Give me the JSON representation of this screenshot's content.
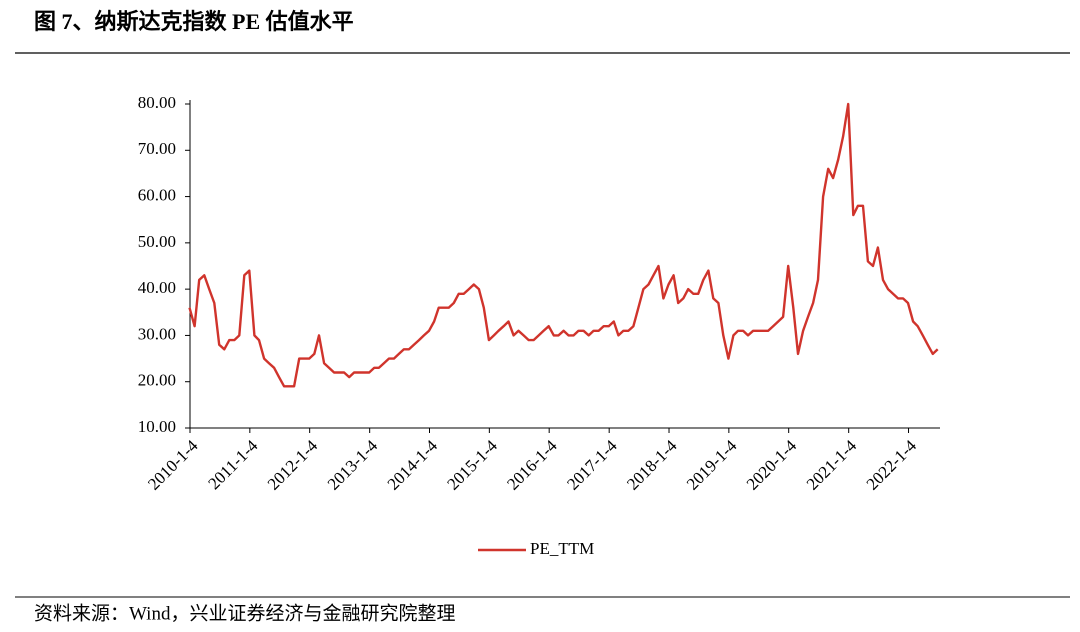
{
  "chart_data": {
    "type": "line",
    "title": "图 7、纳斯达克指数 PE 估值水平",
    "source": "资料来源：Wind，兴业证券经济与金融研究院整理",
    "x": [
      "2010-01",
      "2010-02",
      "2010-03",
      "2010-04",
      "2010-05",
      "2010-06",
      "2010-07",
      "2010-08",
      "2010-09",
      "2010-10",
      "2010-11",
      "2010-12",
      "2011-01",
      "2011-02",
      "2011-03",
      "2011-04",
      "2011-05",
      "2011-06",
      "2011-07",
      "2011-08",
      "2011-09",
      "2011-10",
      "2011-11",
      "2011-12",
      "2012-01",
      "2012-02",
      "2012-03",
      "2012-04",
      "2012-05",
      "2012-06",
      "2012-07",
      "2012-08",
      "2012-09",
      "2012-10",
      "2012-11",
      "2012-12",
      "2013-01",
      "2013-02",
      "2013-03",
      "2013-04",
      "2013-05",
      "2013-06",
      "2013-07",
      "2013-08",
      "2013-09",
      "2013-10",
      "2013-11",
      "2013-12",
      "2014-01",
      "2014-02",
      "2014-03",
      "2014-04",
      "2014-05",
      "2014-06",
      "2014-07",
      "2014-08",
      "2014-09",
      "2014-10",
      "2014-11",
      "2014-12",
      "2015-01",
      "2015-02",
      "2015-03",
      "2015-04",
      "2015-05",
      "2015-06",
      "2015-07",
      "2015-08",
      "2015-09",
      "2015-10",
      "2015-11",
      "2015-12",
      "2016-01",
      "2016-02",
      "2016-03",
      "2016-04",
      "2016-05",
      "2016-06",
      "2016-07",
      "2016-08",
      "2016-09",
      "2016-10",
      "2016-11",
      "2016-12",
      "2017-01",
      "2017-02",
      "2017-03",
      "2017-04",
      "2017-05",
      "2017-06",
      "2017-07",
      "2017-08",
      "2017-09",
      "2017-10",
      "2017-11",
      "2017-12",
      "2018-01",
      "2018-02",
      "2018-03",
      "2018-04",
      "2018-05",
      "2018-06",
      "2018-07",
      "2018-08",
      "2018-09",
      "2018-10",
      "2018-11",
      "2018-12",
      "2019-01",
      "2019-02",
      "2019-03",
      "2019-04",
      "2019-05",
      "2019-06",
      "2019-07",
      "2019-08",
      "2019-09",
      "2019-10",
      "2019-11",
      "2019-12",
      "2020-01",
      "2020-02",
      "2020-03",
      "2020-04",
      "2020-05",
      "2020-06",
      "2020-07",
      "2020-08",
      "2020-09",
      "2020-10",
      "2020-11",
      "2020-12",
      "2021-01",
      "2021-02",
      "2021-03",
      "2021-04",
      "2021-05",
      "2021-06",
      "2021-07",
      "2021-08",
      "2021-09",
      "2021-10",
      "2021-11",
      "2021-12",
      "2022-01",
      "2022-02",
      "2022-03",
      "2022-04",
      "2022-05",
      "2022-06",
      "2022-07"
    ],
    "series": [
      {
        "name": "PE_TTM",
        "color": "#d0342c",
        "values": [
          36,
          32,
          42,
          43,
          40,
          37,
          28,
          27,
          29,
          29,
          30,
          43,
          44,
          30,
          29,
          25,
          24,
          23,
          21,
          19,
          19,
          19,
          25,
          25,
          25,
          26,
          30,
          24,
          23,
          22,
          22,
          22,
          21,
          22,
          22,
          22,
          22,
          23,
          23,
          24,
          25,
          25,
          26,
          27,
          27,
          28,
          29,
          30,
          31,
          33,
          36,
          36,
          36,
          37,
          39,
          39,
          40,
          41,
          40,
          36,
          29,
          30,
          31,
          32,
          33,
          30,
          31,
          30,
          29,
          29,
          30,
          31,
          32,
          30,
          30,
          31,
          30,
          30,
          31,
          31,
          30,
          31,
          31,
          32,
          32,
          33,
          30,
          31,
          31,
          32,
          36,
          40,
          41,
          43,
          45,
          38,
          41,
          43,
          37,
          38,
          40,
          39,
          39,
          42,
          44,
          38,
          37,
          30,
          25,
          30,
          31,
          31,
          30,
          31,
          31,
          31,
          31,
          32,
          33,
          34,
          45,
          36,
          26,
          31,
          34,
          37,
          42,
          60,
          66,
          64,
          68,
          73,
          80,
          56,
          58,
          58,
          46,
          45,
          49,
          42,
          40,
          39,
          38,
          38,
          37,
          33,
          32,
          30,
          28,
          26,
          27
        ]
      }
    ],
    "xlim": [
      "2010-01-04",
      "2022-07-15"
    ],
    "xticks": [
      {
        "value": "2010-01-04",
        "label": "2010-1-4"
      },
      {
        "value": "2011-01-04",
        "label": "2011-1-4"
      },
      {
        "value": "2012-01-04",
        "label": "2012-1-4"
      },
      {
        "value": "2013-01-04",
        "label": "2013-1-4"
      },
      {
        "value": "2014-01-04",
        "label": "2014-1-4"
      },
      {
        "value": "2015-01-04",
        "label": "2015-1-4"
      },
      {
        "value": "2016-01-04",
        "label": "2016-1-4"
      },
      {
        "value": "2017-01-04",
        "label": "2017-1-4"
      },
      {
        "value": "2018-01-04",
        "label": "2018-1-4"
      },
      {
        "value": "2019-01-04",
        "label": "2019-1-4"
      },
      {
        "value": "2020-01-04",
        "label": "2020-1-4"
      },
      {
        "value": "2021-01-04",
        "label": "2021-1-4"
      },
      {
        "value": "2022-01-04",
        "label": "2022-1-4"
      }
    ],
    "ylim": [
      10,
      80
    ],
    "yticks": [
      {
        "value": 10,
        "label": "10.00"
      },
      {
        "value": 20,
        "label": "20.00"
      },
      {
        "value": 30,
        "label": "30.00"
      },
      {
        "value": 40,
        "label": "40.00"
      },
      {
        "value": 50,
        "label": "50.00"
      },
      {
        "value": 60,
        "label": "60.00"
      },
      {
        "value": 70,
        "label": "70.00"
      },
      {
        "value": 80,
        "label": "80.00"
      }
    ],
    "grid": false,
    "legend": "bottom"
  }
}
